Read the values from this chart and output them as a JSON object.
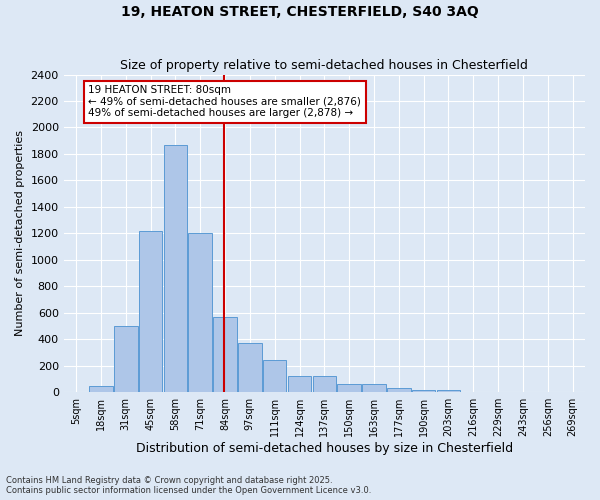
{
  "title1": "19, HEATON STREET, CHESTERFIELD, S40 3AQ",
  "title2": "Size of property relative to semi-detached houses in Chesterfield",
  "xlabel": "Distribution of semi-detached houses by size in Chesterfield",
  "ylabel": "Number of semi-detached properties",
  "property_label": "19 HEATON STREET: 80sqm",
  "pct_smaller": 49,
  "pct_larger": 49,
  "n_smaller": 2876,
  "n_larger": 2878,
  "bin_labels": [
    "5sqm",
    "18sqm",
    "31sqm",
    "45sqm",
    "58sqm",
    "71sqm",
    "84sqm",
    "97sqm",
    "111sqm",
    "124sqm",
    "137sqm",
    "150sqm",
    "163sqm",
    "177sqm",
    "190sqm",
    "203sqm",
    "216sqm",
    "229sqm",
    "243sqm",
    "256sqm",
    "269sqm"
  ],
  "bar_heights": [
    5,
    50,
    500,
    1220,
    1870,
    1200,
    570,
    370,
    240,
    120,
    120,
    60,
    60,
    35,
    20,
    15,
    5,
    3,
    2,
    1,
    1
  ],
  "vline_bin_index": 6,
  "bar_color": "#aec6e8",
  "bar_edge_color": "#5b9bd5",
  "vline_color": "#cc0000",
  "bg_color": "#dde8f5",
  "annotation_box_color": "#cc0000",
  "ylim": [
    0,
    2400
  ],
  "yticks": [
    0,
    200,
    400,
    600,
    800,
    1000,
    1200,
    1400,
    1600,
    1800,
    2000,
    2200,
    2400
  ],
  "footer": "Contains HM Land Registry data © Crown copyright and database right 2025.\nContains public sector information licensed under the Open Government Licence v3.0.",
  "title1_fontsize": 10,
  "title2_fontsize": 9,
  "ylabel_fontsize": 8,
  "xlabel_fontsize": 9,
  "footer_fontsize": 6,
  "annot_fontsize": 7.5,
  "ytick_fontsize": 8,
  "xtick_fontsize": 7
}
